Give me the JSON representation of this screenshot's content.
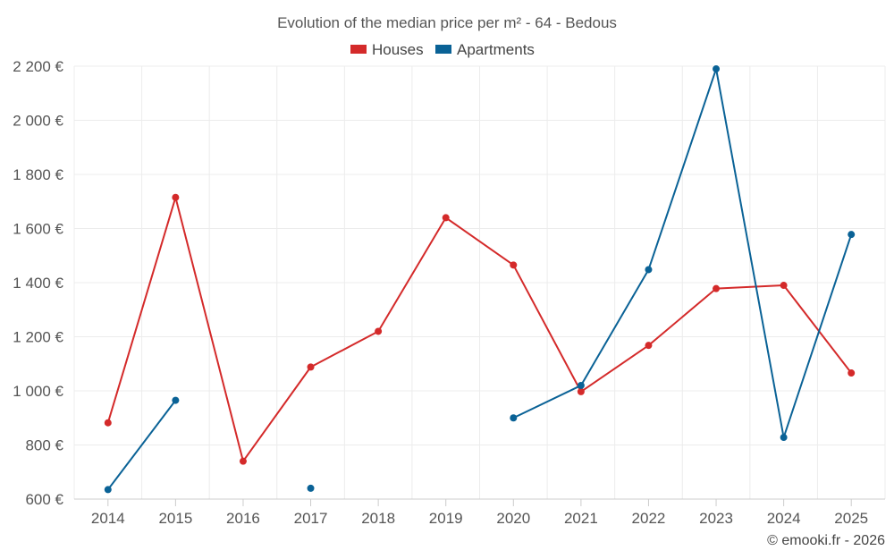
{
  "chart_data": {
    "type": "line",
    "title": "Evolution of the median price per m² - 64 - Bedous",
    "categories": [
      "2014",
      "2015",
      "2016",
      "2017",
      "2018",
      "2019",
      "2020",
      "2021",
      "2022",
      "2023",
      "2024",
      "2025"
    ],
    "ylim": [
      600,
      2200
    ],
    "yticks": [
      600,
      800,
      1000,
      1200,
      1400,
      1600,
      1800,
      2000,
      2200
    ],
    "ytick_labels": [
      "600 €",
      "800 €",
      "1 000 €",
      "1 200 €",
      "1 400 €",
      "1 600 €",
      "1 800 €",
      "2 000 €",
      "2 200 €"
    ],
    "legend_position": "top-center",
    "grid": true,
    "series": [
      {
        "name": "Houses",
        "color": "#d42a2a",
        "values": [
          882,
          1715,
          740,
          1088,
          1220,
          1640,
          1465,
          997,
          1168,
          1378,
          1390,
          1066
        ]
      },
      {
        "name": "Apartments",
        "color": "#0a6296",
        "values": [
          635,
          965,
          null,
          640,
          null,
          null,
          900,
          1020,
          1448,
          2190,
          828,
          1578
        ]
      }
    ]
  },
  "credit": "© emooki.fr - 2026"
}
